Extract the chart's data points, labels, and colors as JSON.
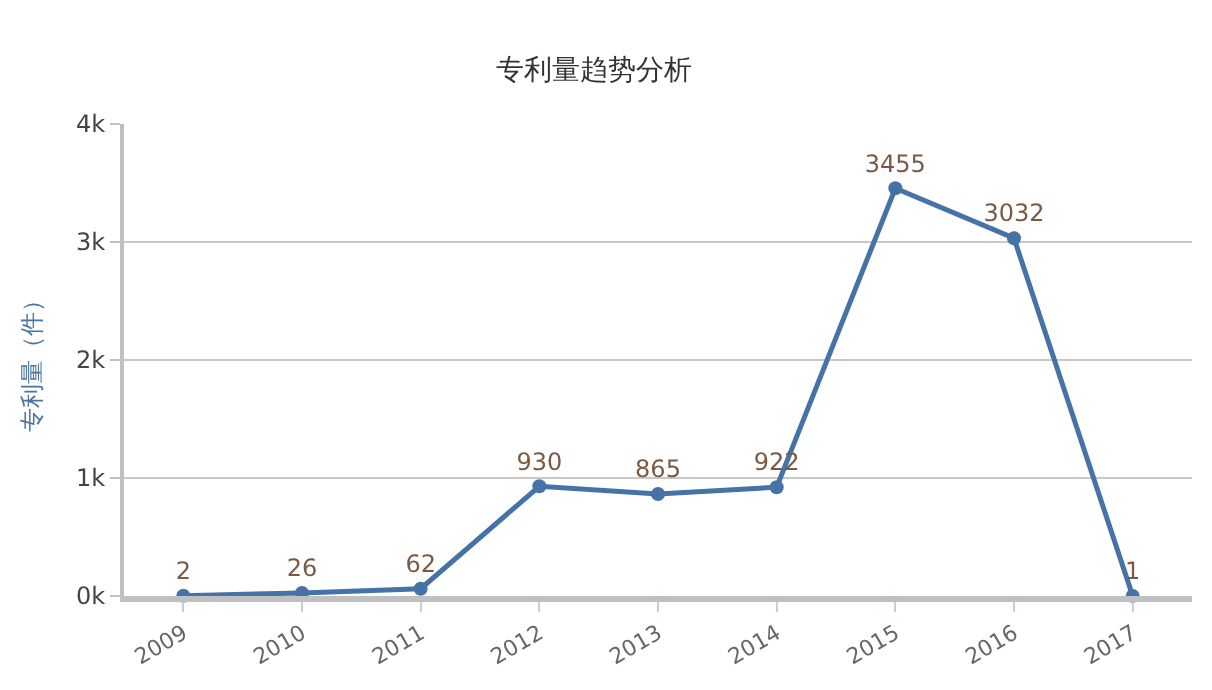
{
  "chart_data": {
    "type": "line",
    "title": "专利量趋势分析",
    "ylabel": "专利量（件）",
    "categories": [
      "2009",
      "2010",
      "2011",
      "2012",
      "2013",
      "2014",
      "2015",
      "2016",
      "2017"
    ],
    "series": [
      {
        "color": "#4572a7",
        "values": [
          2,
          26,
          62,
          930,
          865,
          922,
          3455,
          3032,
          1
        ]
      }
    ],
    "ylim": [
      0,
      4000
    ],
    "yticks": [
      {
        "value": 0,
        "label": "0k"
      },
      {
        "value": 1000,
        "label": "1k"
      },
      {
        "value": 2000,
        "label": "2k"
      },
      {
        "value": 3000,
        "label": "3k"
      },
      {
        "value": 4000,
        "label": "4k"
      }
    ],
    "grid": "y",
    "marker": "circle",
    "line_style": "solid",
    "data_labels": true,
    "legend": false
  }
}
